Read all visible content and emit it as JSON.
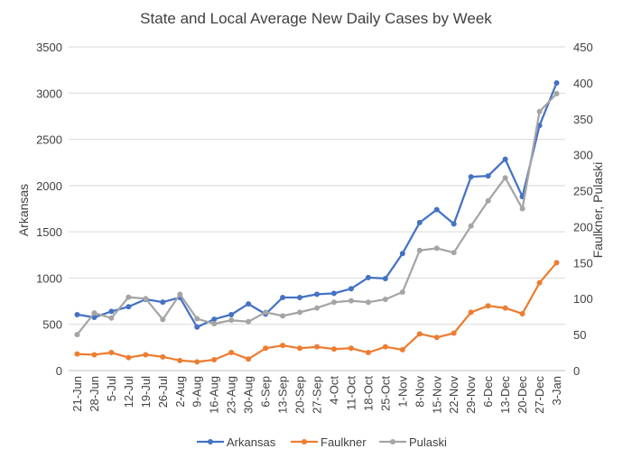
{
  "chart_data": {
    "type": "line",
    "title": "State and Local Average New Daily Cases by Week",
    "ylabel_left": "Arkansas",
    "ylabel_right": "Faulkner, Pulaski",
    "ylim_left": [
      0,
      3500
    ],
    "ylim_right": [
      0,
      450
    ],
    "yticks_left": [
      "0",
      "500",
      "1000",
      "1500",
      "2000",
      "2500",
      "3000",
      "3500"
    ],
    "yticks_right": [
      "0",
      "50",
      "100",
      "150",
      "200",
      "250",
      "300",
      "350",
      "400",
      "450"
    ],
    "grid": true,
    "legend_position": "bottom",
    "categories": [
      "21-Jun",
      "28-Jun",
      "5-Jul",
      "12-Jul",
      "19-Jul",
      "26-Jul",
      "2-Aug",
      "9-Aug",
      "16-Aug",
      "23-Aug",
      "30-Aug",
      "6-Sep",
      "13-Sep",
      "20-Sep",
      "27-Sep",
      "4-Oct",
      "11-Oct",
      "18-Oct",
      "25-Oct",
      "1-Nov",
      "8-Nov",
      "15-Nov",
      "22-Nov",
      "29-Nov",
      "6-Dec",
      "13-Dec",
      "20-Dec",
      "27-Dec",
      "3-Jan"
    ],
    "series": [
      {
        "name": "Arkansas",
        "axis": "left",
        "color": "#4472c4",
        "values": [
          605,
          575,
          640,
          690,
          770,
          740,
          790,
          470,
          555,
          605,
          720,
          610,
          790,
          790,
          825,
          835,
          885,
          1005,
          995,
          1265,
          1600,
          1740,
          1585,
          2095,
          2105,
          2285,
          1880,
          2650,
          3110
        ]
      },
      {
        "name": "Faulkner",
        "axis": "right",
        "color": "#ed7d31",
        "values": [
          23,
          22,
          25,
          18,
          22,
          19,
          14,
          12,
          15,
          25,
          16,
          31,
          35,
          31,
          33,
          30,
          31,
          25,
          33,
          29,
          51,
          46,
          52,
          81,
          90,
          87,
          79,
          122,
          150
        ]
      },
      {
        "name": "Pulaski",
        "axis": "right",
        "color": "#a5a5a5",
        "values": [
          50,
          80,
          73,
          102,
          100,
          71,
          106,
          72,
          65,
          70,
          68,
          81,
          76,
          81,
          87,
          95,
          97,
          95,
          99,
          109,
          167,
          170,
          164,
          201,
          236,
          268,
          225,
          360,
          385
        ]
      }
    ]
  }
}
